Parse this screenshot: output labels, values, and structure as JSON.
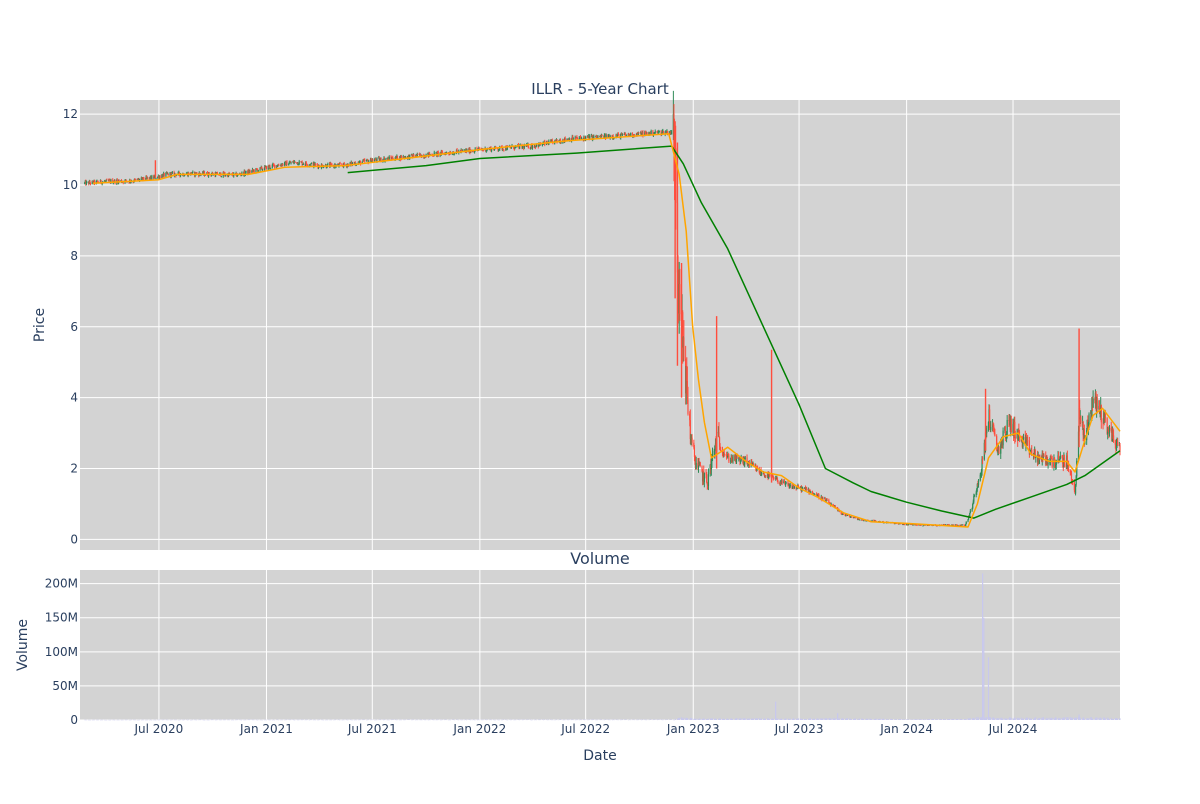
{
  "chart_data": {
    "type": "candlestick",
    "title": "ILLR - 5-Year Chart",
    "colors": {
      "background": "#d3d3d3",
      "grid": "#ffffff",
      "increasing": "#2e8b57",
      "decreasing": "#ff4d3d",
      "ma_short": "#ffa500",
      "ma_long": "#008000",
      "volume": "#c8c8ee",
      "text": "#2a3f5f"
    },
    "price_panel": {
      "ylabel": "Price",
      "ylim": [
        -0.3,
        12.4
      ],
      "yticks": [
        0,
        2,
        4,
        6,
        8,
        10,
        12
      ],
      "grid": true
    },
    "volume_panel": {
      "title": "Volume",
      "ylabel": "Volume",
      "ylim": [
        0,
        220000000
      ],
      "yticks": [
        {
          "value": 0,
          "label": "0"
        },
        {
          "value": 50000000,
          "label": "50M"
        },
        {
          "value": 100000000,
          "label": "100M"
        },
        {
          "value": 150000000,
          "label": "150M"
        },
        {
          "value": 200000000,
          "label": "200M"
        }
      ]
    },
    "xaxis": {
      "label": "Date",
      "range": [
        "2020-02-17",
        "2024-12-31"
      ],
      "ticks": [
        {
          "date": "2020-07-01",
          "label": "Jul 2020"
        },
        {
          "date": "2021-01-01",
          "label": "Jan 2021"
        },
        {
          "date": "2021-07-01",
          "label": "Jul 2021"
        },
        {
          "date": "2022-01-01",
          "label": "Jan 2022"
        },
        {
          "date": "2022-07-01",
          "label": "Jul 2022"
        },
        {
          "date": "2023-01-01",
          "label": "Jan 2023"
        },
        {
          "date": "2023-07-01",
          "label": "Jul 2023"
        },
        {
          "date": "2024-01-01",
          "label": "Jan 2024"
        },
        {
          "date": "2024-07-01",
          "label": "Jul 2024"
        }
      ]
    },
    "price_anchors": [
      [
        "2020-02-25",
        10.05
      ],
      [
        "2020-04-01",
        10.1
      ],
      [
        "2020-05-15",
        10.12
      ],
      [
        "2020-06-20",
        10.2
      ],
      [
        "2020-07-15",
        10.3
      ],
      [
        "2020-09-01",
        10.32
      ],
      [
        "2020-10-15",
        10.3
      ],
      [
        "2020-11-10",
        10.28
      ],
      [
        "2020-12-10",
        10.4
      ],
      [
        "2021-01-15",
        10.55
      ],
      [
        "2021-02-20",
        10.65
      ],
      [
        "2021-04-01",
        10.55
      ],
      [
        "2021-05-10",
        10.55
      ],
      [
        "2021-07-01",
        10.7
      ],
      [
        "2021-10-01",
        10.85
      ],
      [
        "2022-01-01",
        11.0
      ],
      [
        "2022-04-01",
        11.1
      ],
      [
        "2022-06-01",
        11.3
      ],
      [
        "2022-09-01",
        11.4
      ],
      [
        "2022-11-15",
        11.5
      ],
      [
        "2022-12-01",
        11.45
      ],
      [
        "2022-12-03",
        9.5
      ],
      [
        "2022-12-08",
        6.5
      ],
      [
        "2022-12-15",
        5.5
      ],
      [
        "2022-12-22",
        4.0
      ],
      [
        "2022-12-30",
        2.5
      ],
      [
        "2023-01-10",
        2.0
      ],
      [
        "2023-01-25",
        1.6
      ],
      [
        "2023-02-10",
        2.8
      ],
      [
        "2023-03-01",
        2.3
      ],
      [
        "2023-04-01",
        2.2
      ],
      [
        "2023-04-25",
        1.9
      ],
      [
        "2023-05-20",
        1.7
      ],
      [
        "2023-06-01",
        1.6
      ],
      [
        "2023-06-15",
        1.5
      ],
      [
        "2023-07-15",
        1.4
      ],
      [
        "2023-08-15",
        1.1
      ],
      [
        "2023-09-15",
        0.7
      ],
      [
        "2023-10-15",
        0.55
      ],
      [
        "2023-11-15",
        0.5
      ],
      [
        "2024-01-01",
        0.42
      ],
      [
        "2024-02-15",
        0.4
      ],
      [
        "2024-03-15",
        0.42
      ],
      [
        "2024-04-10",
        0.4
      ],
      [
        "2024-04-20",
        0.8
      ],
      [
        "2024-05-10",
        2.2
      ],
      [
        "2024-05-20",
        3.5
      ],
      [
        "2024-06-05",
        2.5
      ],
      [
        "2024-06-25",
        3.3
      ],
      [
        "2024-07-15",
        2.8
      ],
      [
        "2024-08-10",
        2.3
      ],
      [
        "2024-09-10",
        2.2
      ],
      [
        "2024-10-01",
        2.2
      ],
      [
        "2024-10-15",
        1.3
      ],
      [
        "2024-10-22",
        3.5
      ],
      [
        "2024-11-01",
        2.8
      ],
      [
        "2024-11-15",
        4.0
      ],
      [
        "2024-12-01",
        3.5
      ],
      [
        "2024-12-15",
        3.0
      ],
      [
        "2024-12-31",
        2.5
      ]
    ],
    "ma_short": [
      [
        "2020-03-10",
        10.05
      ],
      [
        "2020-07-01",
        10.15
      ],
      [
        "2020-08-01",
        10.3
      ],
      [
        "2020-12-01",
        10.3
      ],
      [
        "2021-02-01",
        10.5
      ],
      [
        "2021-05-15",
        10.55
      ],
      [
        "2022-01-01",
        11.0
      ],
      [
        "2022-06-01",
        11.25
      ],
      [
        "2022-11-20",
        11.45
      ],
      [
        "2022-12-08",
        10.3
      ],
      [
        "2022-12-20",
        8.7
      ],
      [
        "2022-12-31",
        6.0
      ],
      [
        "2023-01-10",
        4.5
      ],
      [
        "2023-01-20",
        3.3
      ],
      [
        "2023-02-01",
        2.3
      ],
      [
        "2023-02-20",
        2.5
      ],
      [
        "2023-03-01",
        2.6
      ],
      [
        "2023-04-01",
        2.2
      ],
      [
        "2023-05-01",
        1.9
      ],
      [
        "2023-06-01",
        1.8
      ],
      [
        "2023-07-01",
        1.45
      ],
      [
        "2023-08-01",
        1.2
      ],
      [
        "2023-09-15",
        0.75
      ],
      [
        "2023-11-01",
        0.5
      ],
      [
        "2024-01-01",
        0.45
      ],
      [
        "2024-04-15",
        0.35
      ],
      [
        "2024-05-01",
        1.0
      ],
      [
        "2024-05-20",
        2.3
      ],
      [
        "2024-06-15",
        2.9
      ],
      [
        "2024-07-10",
        3.0
      ],
      [
        "2024-08-01",
        2.4
      ],
      [
        "2024-09-01",
        2.2
      ],
      [
        "2024-10-01",
        2.2
      ],
      [
        "2024-10-15",
        1.9
      ],
      [
        "2024-11-01",
        2.8
      ],
      [
        "2024-11-15",
        3.5
      ],
      [
        "2024-12-01",
        3.7
      ],
      [
        "2024-12-31",
        3.05
      ]
    ],
    "ma_long": [
      [
        "2021-05-20",
        10.35
      ],
      [
        "2021-10-01",
        10.55
      ],
      [
        "2022-01-01",
        10.75
      ],
      [
        "2022-06-15",
        10.9
      ],
      [
        "2022-11-25",
        11.1
      ],
      [
        "2022-12-15",
        10.6
      ],
      [
        "2023-01-15",
        9.5
      ],
      [
        "2023-03-01",
        8.2
      ],
      [
        "2023-05-01",
        6.0
      ],
      [
        "2023-07-01",
        3.8
      ],
      [
        "2023-08-15",
        2.0
      ],
      [
        "2023-10-01",
        1.6
      ],
      [
        "2023-11-01",
        1.35
      ],
      [
        "2024-01-01",
        1.05
      ],
      [
        "2024-03-01",
        0.8
      ],
      [
        "2024-04-25",
        0.6
      ],
      [
        "2024-06-01",
        0.85
      ],
      [
        "2024-08-01",
        1.2
      ],
      [
        "2024-10-01",
        1.55
      ],
      [
        "2024-11-01",
        1.8
      ],
      [
        "2024-12-31",
        2.5
      ]
    ],
    "volume_anchors": [
      [
        "2020-02-20",
        200000
      ],
      [
        "2022-11-30",
        400000
      ],
      [
        "2022-12-05",
        3000000
      ],
      [
        "2023-01-15",
        1500000
      ],
      [
        "2023-05-01",
        2000000
      ],
      [
        "2023-06-01",
        1500000
      ],
      [
        "2023-09-01",
        2000000
      ],
      [
        "2024-01-01",
        800000
      ],
      [
        "2024-04-10",
        1000000
      ],
      [
        "2024-05-01",
        3000000
      ],
      [
        "2024-07-01",
        2500000
      ],
      [
        "2024-10-20",
        3000000
      ],
      [
        "2024-12-31",
        2000000
      ]
    ],
    "volume_spikes": [
      [
        "2023-05-22",
        27000000
      ],
      [
        "2023-09-05",
        10000000
      ],
      [
        "2024-05-10",
        215000000
      ],
      [
        "2024-05-12",
        150000000
      ],
      [
        "2024-05-20",
        92000000
      ],
      [
        "2024-10-22",
        8000000
      ]
    ],
    "price_spikes": [
      [
        "2020-06-25",
        10.7,
        10.2
      ],
      [
        "2022-12-01",
        11.8,
        6.8
      ],
      [
        "2022-12-05",
        11.2,
        4.9
      ],
      [
        "2022-12-12",
        7.8,
        4.0
      ],
      [
        "2023-02-10",
        6.3,
        2.0
      ],
      [
        "2023-05-15",
        5.35,
        1.6
      ],
      [
        "2024-05-15",
        4.25,
        2.5
      ],
      [
        "2024-10-22",
        5.95,
        2.6
      ]
    ]
  }
}
